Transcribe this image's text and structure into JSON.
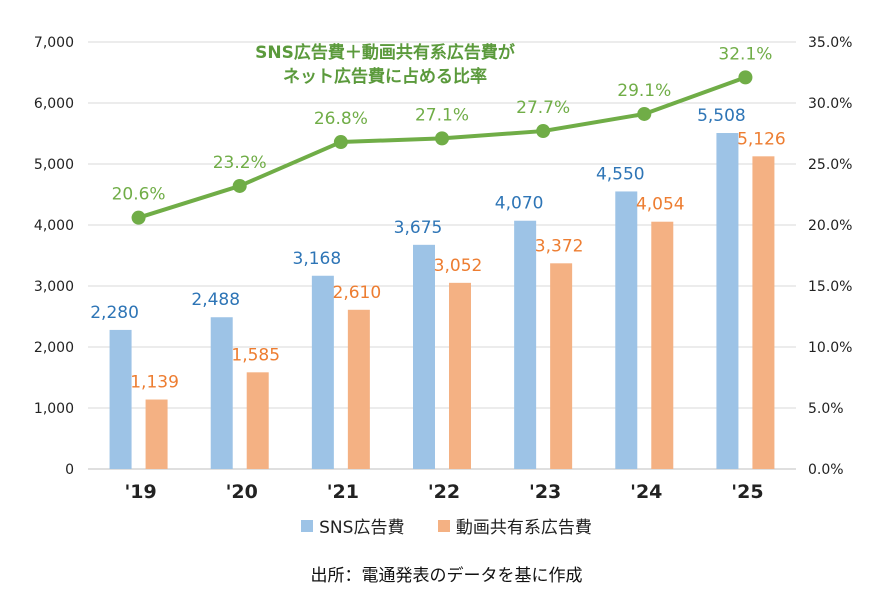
{
  "chart_data": {
    "type": "bar",
    "title_lines": [
      "SNS広告費＋動画共有系広告費が",
      "ネット広告費に占める比率"
    ],
    "categories": [
      "'19",
      "'20",
      "'21",
      "'22",
      "'23",
      "'24",
      "'25"
    ],
    "series": [
      {
        "name": "SNS広告費",
        "type": "bar",
        "axis": "left",
        "values": [
          2280,
          2488,
          3168,
          3675,
          4070,
          4550,
          5508
        ],
        "labels": [
          "2,280",
          "2,488",
          "3,168",
          "3,675",
          "4,070",
          "4,550",
          "5,508"
        ],
        "color": "#9dc3e6",
        "label_color": "#2e75b6"
      },
      {
        "name": "動画共有系広告費",
        "type": "bar",
        "axis": "left",
        "values": [
          1139,
          1585,
          2610,
          3052,
          3372,
          4054,
          5126
        ],
        "labels": [
          "1,139",
          "1,585",
          "2,610",
          "3,052",
          "3,372",
          "4,054",
          "5,126"
        ],
        "color": "#f4b183",
        "label_color": "#ed7d31"
      },
      {
        "type": "line",
        "axis": "right",
        "values": [
          20.6,
          23.2,
          26.8,
          27.1,
          27.7,
          29.1,
          32.1
        ],
        "labels": [
          "20.6%",
          "23.2%",
          "26.8%",
          "27.1%",
          "27.7%",
          "29.1%",
          "32.1%"
        ],
        "color": "#70ad47"
      }
    ],
    "y_left": {
      "min": 0,
      "max": 7000,
      "ticks": [
        "0",
        "1,000",
        "2,000",
        "3,000",
        "4,000",
        "5,000",
        "6,000",
        "7,000"
      ]
    },
    "y_right": {
      "min": 0,
      "max": 35,
      "ticks": [
        "0.0%",
        "5.0%",
        "10.0%",
        "15.0%",
        "20.0%",
        "25.0%",
        "30.0%",
        "35.0%"
      ]
    },
    "grid": true,
    "legend_position": "bottom"
  },
  "source_note": "出所：電通発表のデータを基に作成"
}
